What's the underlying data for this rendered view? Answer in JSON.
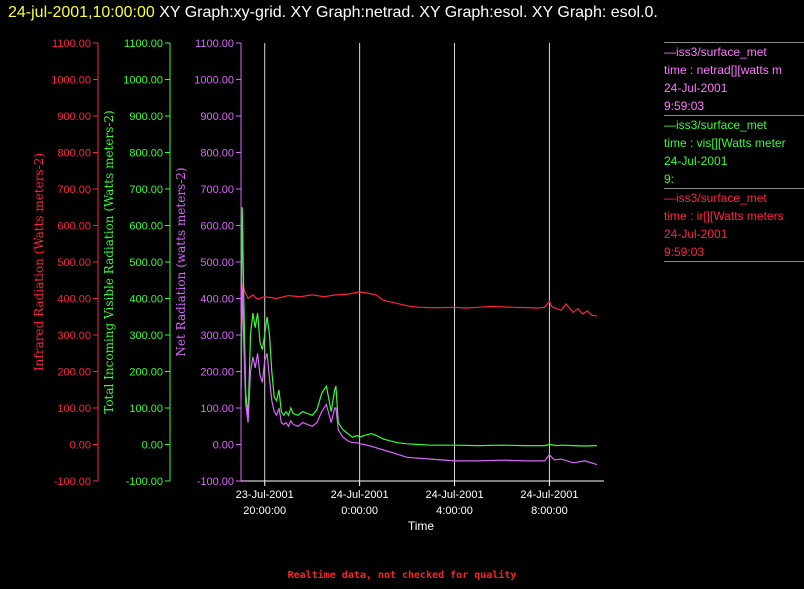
{
  "header": {
    "timestamp": "24-jul-2001,10:00:00",
    "title": "XY Graph:xy-grid.  XY Graph:netrad.  XY Graph:esol.  XY Graph: esol.0."
  },
  "legend": [
    {
      "line1": "—iss3/surface_met",
      "line2": "time : netrad[][watts m",
      "line3": "24-Jul-2001",
      "line4": "9:59:03",
      "color": "#ff77ff"
    },
    {
      "line1": "—iss3/surface_met",
      "line2": "time : vis[][Watts meter",
      "line3": "24-Jul-2001",
      "line4": "9:",
      "color": "#33ff33"
    },
    {
      "line1": "—iss3/surface_met",
      "line2": "time : ir[][Watts meters",
      "line3": "24-Jul-2001",
      "line4": "9:59:03",
      "color": "#ff2244"
    }
  ],
  "footer": "Realtime data, not checked for quality",
  "colors": {
    "ir": "#ff2244",
    "vis": "#33ff33",
    "net": "#dd66ff",
    "grid": "#d8d8d8",
    "axis": "#ffffff"
  },
  "chart_data": {
    "type": "line",
    "xlabel": "Time",
    "x_range_hours": [
      -5.0,
      10.3
    ],
    "x_ticks": [
      {
        "hours": -4,
        "line1": "23-Jul-2001",
        "line2": "20:00:00"
      },
      {
        "hours": 0,
        "line1": "24-Jul-2001",
        "line2": "0:00:00"
      },
      {
        "hours": 4,
        "line1": "24-Jul-2001",
        "line2": "4:00:00"
      },
      {
        "hours": 8,
        "line1": "24-Jul-2001",
        "line2": "8:00:00"
      }
    ],
    "y_axes": [
      {
        "key": "ir",
        "label": "Infrared Radiation (Watts meters-2)",
        "ylim": [
          -100,
          1100
        ]
      },
      {
        "key": "vis",
        "label": "Total Incoming Visible Radiation (Watts meters-2)",
        "ylim": [
          -100,
          1100
        ]
      },
      {
        "key": "net",
        "label": "Net Radiation (watts meters-2)",
        "ylim": [
          -100,
          1100
        ]
      }
    ],
    "y_ticks": [
      "-100.00",
      "0.00",
      "100.00",
      "200.00",
      "300.00",
      "400.00",
      "500.00",
      "600.00",
      "700.00",
      "800.00",
      "900.00",
      "1000.00",
      "1100.00"
    ],
    "series": [
      {
        "key": "ir",
        "x": [
          -5.0,
          -4.92,
          -4.85,
          -4.7,
          -4.5,
          -4.3,
          -4.0,
          -3.5,
          -3.0,
          -2.5,
          -2.0,
          -1.5,
          -1.0,
          -0.5,
          0.0,
          0.3,
          0.7,
          1.0,
          1.5,
          2.0,
          2.5,
          3.0,
          3.5,
          4.0,
          4.5,
          5.0,
          5.5,
          6.0,
          6.5,
          7.0,
          7.5,
          7.8,
          8.0,
          8.1,
          8.3,
          8.5,
          8.7,
          9.0,
          9.2,
          9.4,
          9.6,
          9.8,
          10.0
        ],
        "values": [
          330,
          440,
          420,
          400,
          410,
          398,
          405,
          400,
          408,
          405,
          410,
          405,
          410,
          412,
          418,
          415,
          410,
          395,
          388,
          380,
          376,
          375,
          375,
          376,
          374,
          376,
          378,
          377,
          376,
          375,
          374,
          376,
          392,
          378,
          372,
          368,
          385,
          362,
          372,
          358,
          366,
          354,
          352
        ]
      },
      {
        "key": "vis",
        "x": [
          -5.0,
          -4.95,
          -4.88,
          -4.8,
          -4.7,
          -4.6,
          -4.5,
          -4.4,
          -4.3,
          -4.2,
          -4.1,
          -4.0,
          -3.9,
          -3.8,
          -3.7,
          -3.6,
          -3.5,
          -3.4,
          -3.3,
          -3.2,
          -3.1,
          -3.0,
          -2.9,
          -2.8,
          -2.6,
          -2.4,
          -2.2,
          -2.0,
          -1.8,
          -1.6,
          -1.4,
          -1.2,
          -1.05,
          -1.0,
          -0.9,
          -0.7,
          -0.5,
          -0.3,
          -0.1,
          0.0,
          0.2,
          0.5,
          0.7,
          1.0,
          1.3,
          1.6,
          2.0,
          2.5,
          3.0,
          4.0,
          5.0,
          6.0,
          7.0,
          7.8,
          8.0,
          8.3,
          8.5,
          9.0,
          9.5,
          10.0
        ],
        "values": [
          150,
          650,
          400,
          140,
          80,
          300,
          360,
          320,
          360,
          280,
          260,
          300,
          350,
          300,
          200,
          130,
          120,
          150,
          90,
          80,
          90,
          80,
          100,
          85,
          80,
          90,
          85,
          80,
          95,
          140,
          160,
          90,
          150,
          160,
          60,
          40,
          30,
          20,
          25,
          20,
          25,
          30,
          25,
          15,
          10,
          5,
          2,
          0,
          -2,
          -2,
          -3,
          -2,
          -3,
          -3,
          0,
          -3,
          -2,
          -3,
          -4,
          -3
        ]
      },
      {
        "key": "net",
        "x": [
          -5.0,
          -4.95,
          -4.88,
          -4.8,
          -4.7,
          -4.6,
          -4.5,
          -4.4,
          -4.3,
          -4.2,
          -4.1,
          -4.0,
          -3.9,
          -3.8,
          -3.7,
          -3.6,
          -3.5,
          -3.4,
          -3.3,
          -3.2,
          -3.1,
          -3.0,
          -2.9,
          -2.8,
          -2.6,
          -2.4,
          -2.2,
          -2.0,
          -1.8,
          -1.6,
          -1.4,
          -1.2,
          -1.05,
          -1.0,
          -0.9,
          -0.7,
          -0.5,
          -0.3,
          -0.1,
          0.0,
          0.2,
          0.5,
          1.0,
          1.5,
          2.0,
          3.0,
          4.0,
          5.0,
          6.0,
          7.0,
          7.8,
          8.0,
          8.2,
          8.5,
          9.0,
          9.5,
          10.0
        ],
        "values": [
          130,
          430,
          280,
          110,
          60,
          200,
          240,
          210,
          250,
          190,
          170,
          230,
          250,
          180,
          120,
          90,
          80,
          100,
          60,
          55,
          60,
          50,
          65,
          55,
          50,
          60,
          55,
          50,
          60,
          90,
          110,
          60,
          100,
          100,
          40,
          20,
          10,
          5,
          5,
          2,
          0,
          -5,
          -15,
          -25,
          -35,
          -40,
          -45,
          -45,
          -43,
          -45,
          -45,
          -28,
          -42,
          -40,
          -50,
          -45,
          -55
        ]
      }
    ]
  }
}
